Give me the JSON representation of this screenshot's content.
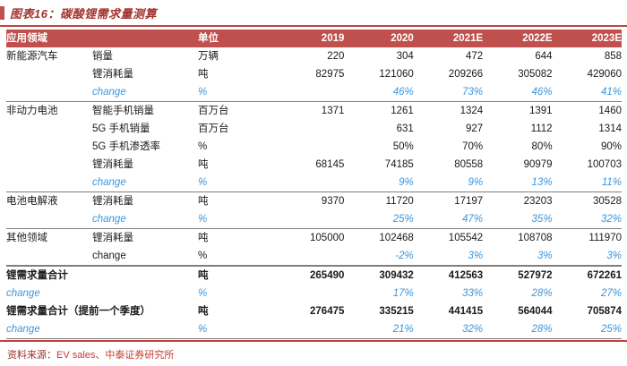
{
  "title": "图表16：碳酸锂需求量测算",
  "colors": {
    "header_bg": "#C0504D",
    "accent_red": "#BE4743",
    "title_red": "#A33530",
    "change_blue": "#3C96DC",
    "source_red": "#C63C31"
  },
  "table": {
    "header": {
      "app_field": "应用领域",
      "unit": "单位",
      "years": [
        "2019",
        "2020",
        "2021E",
        "2022E",
        "2023E"
      ]
    },
    "rows": [
      {
        "group": "新能源汽车",
        "label": "销量",
        "unit": "万辆",
        "values": [
          "220",
          "304",
          "472",
          "644",
          "858"
        ]
      },
      {
        "group": "",
        "label": "锂消耗量",
        "unit": "吨",
        "values": [
          "82975",
          "121060",
          "209266",
          "305082",
          "429060"
        ]
      },
      {
        "group": "",
        "label": "change",
        "unit": "%",
        "values": [
          "",
          "46%",
          "73%",
          "46%",
          "41%"
        ],
        "type": "change"
      },
      {
        "group": "非动力电池",
        "label": "智能手机销量",
        "unit": "百万台",
        "values": [
          "1371",
          "1261",
          "1324",
          "1391",
          "1460"
        ],
        "sep": true
      },
      {
        "group": "",
        "label": "5G 手机销量",
        "unit": "百万台",
        "values": [
          "",
          "631",
          "927",
          "1112",
          "1314"
        ]
      },
      {
        "group": "",
        "label": "5G 手机渗透率",
        "unit": "%",
        "values": [
          "",
          "50%",
          "70%",
          "80%",
          "90%"
        ]
      },
      {
        "group": "",
        "label": "锂消耗量",
        "unit": "吨",
        "values": [
          "68145",
          "74185",
          "80558",
          "90979",
          "100703"
        ]
      },
      {
        "group": "",
        "label": "change",
        "unit": "%",
        "values": [
          "",
          "9%",
          "9%",
          "13%",
          "11%"
        ],
        "type": "change"
      },
      {
        "group": "电池电解液",
        "label": "锂消耗量",
        "unit": "吨",
        "values": [
          "9370",
          "11720",
          "17197",
          "23203",
          "30528"
        ],
        "sep": true
      },
      {
        "group": "",
        "label": "change",
        "unit": "%",
        "values": [
          "",
          "25%",
          "47%",
          "35%",
          "32%"
        ],
        "type": "change"
      },
      {
        "group": "其他领域",
        "label": "锂消耗量",
        "unit": "吨",
        "values": [
          "105000",
          "102468",
          "105542",
          "108708",
          "111970"
        ],
        "sep": true
      },
      {
        "group": "",
        "label": "change",
        "unit": "%",
        "values": [
          "",
          "-2%",
          "3%",
          "3%",
          "3%"
        ],
        "type": "change-plain"
      },
      {
        "label": "锂需求量合计",
        "unit": "吨",
        "values": [
          "265490",
          "309432",
          "412563",
          "527972",
          "672261"
        ],
        "type": "total",
        "sep2": true
      },
      {
        "group": "",
        "label": "change",
        "unit": "%",
        "values": [
          "",
          "17%",
          "33%",
          "28%",
          "27%"
        ],
        "type": "change",
        "indent": true
      },
      {
        "label": "锂需求量合计（提前一个季度）",
        "unit": "吨",
        "values": [
          "276475",
          "335215",
          "441415",
          "564044",
          "705874"
        ],
        "type": "total"
      },
      {
        "group": "",
        "label": "change",
        "unit": "%",
        "values": [
          "",
          "21%",
          "32%",
          "28%",
          "25%"
        ],
        "type": "change",
        "indent": true
      }
    ]
  },
  "footer": {
    "label": "资料来源：",
    "text": "EV sales、中泰证券研究所"
  }
}
